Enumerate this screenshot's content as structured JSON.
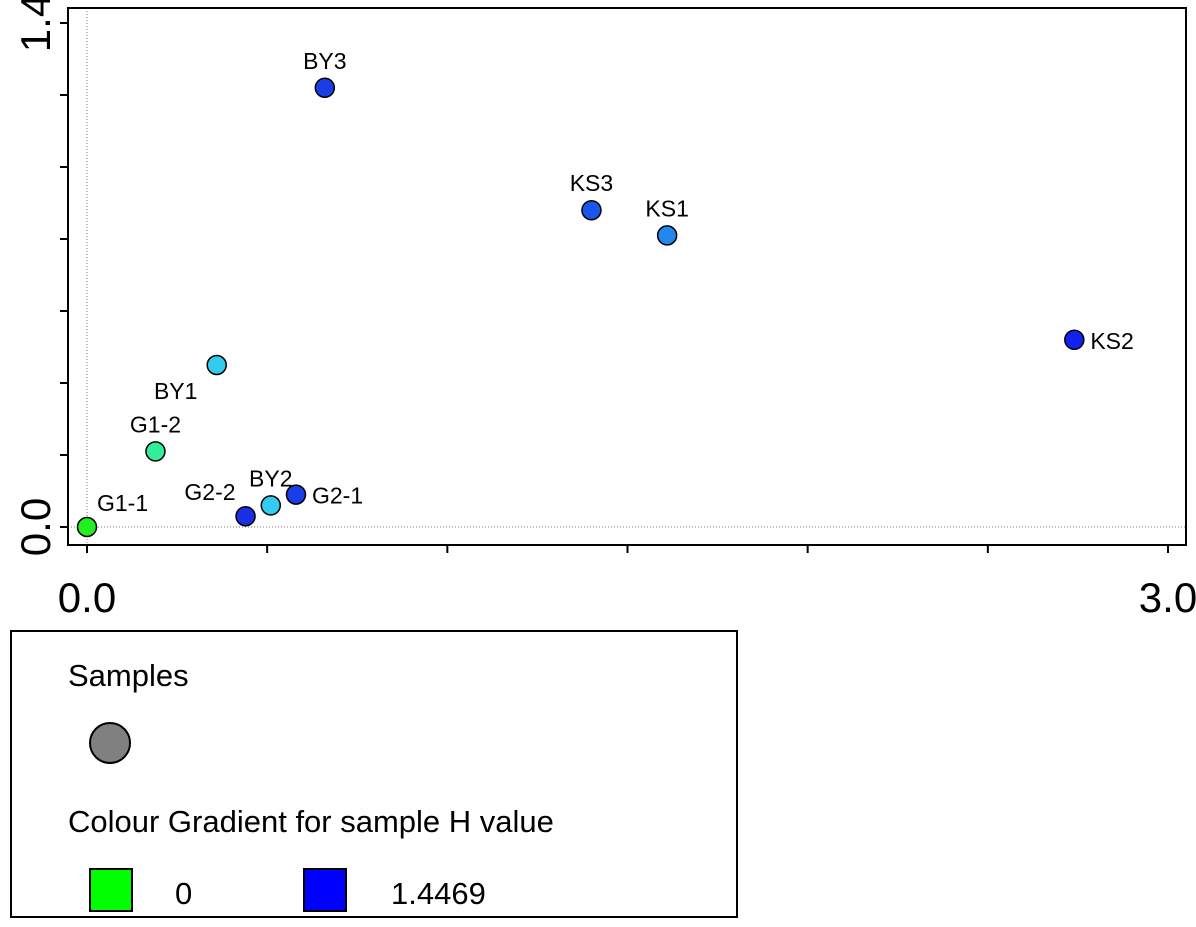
{
  "chart_data": {
    "type": "scatter",
    "title": "",
    "xlabel": "",
    "ylabel": "",
    "xlim": [
      -0.05,
      3.05
    ],
    "ylim": [
      -0.05,
      1.42
    ],
    "x_tick_labels": [
      {
        "value": 0.0,
        "label": "0.0"
      },
      {
        "value": 3.0,
        "label": "3.0"
      }
    ],
    "y_tick_labels": [
      {
        "value": 0.0,
        "label": "0.0"
      },
      {
        "value": 1.4,
        "label": "1.4"
      }
    ],
    "points": [
      {
        "label": "G1-1",
        "x": 0.0,
        "y": 0.0,
        "color": "#22ee22",
        "label_pos": "upper-right"
      },
      {
        "label": "G1-2",
        "x": 0.19,
        "y": 0.21,
        "color": "#33ee99",
        "label_pos": "above"
      },
      {
        "label": "BY1",
        "x": 0.36,
        "y": 0.45,
        "color": "#33ccee",
        "label_pos": "lower-left"
      },
      {
        "label": "G2-2",
        "x": 0.44,
        "y": 0.03,
        "color": "#1a2ee6",
        "label_pos": "upper-left"
      },
      {
        "label": "BY2",
        "x": 0.51,
        "y": 0.06,
        "color": "#33ccee",
        "label_pos": "above"
      },
      {
        "label": "G2-1",
        "x": 0.58,
        "y": 0.09,
        "color": "#1a3ee6",
        "label_pos": "right"
      },
      {
        "label": "BY3",
        "x": 0.66,
        "y": 1.22,
        "color": "#1a3ee6",
        "label_pos": "above"
      },
      {
        "label": "KS3",
        "x": 1.4,
        "y": 0.88,
        "color": "#1a55ee",
        "label_pos": "above"
      },
      {
        "label": "KS1",
        "x": 1.61,
        "y": 0.81,
        "color": "#2288ee",
        "label_pos": "above"
      },
      {
        "label": "KS2",
        "x": 2.74,
        "y": 0.52,
        "color": "#1122ee",
        "label_pos": "right"
      }
    ],
    "grid": false,
    "legend_position": "bottom-left"
  },
  "legend": {
    "samples_label": "Samples",
    "samples_marker_color": "#808080",
    "gradient_title": "Colour Gradient for sample H value",
    "gradient_min_label": "0",
    "gradient_max_label": "1.4469",
    "gradient_min_color": "#00ff00",
    "gradient_max_color": "#0000ff"
  }
}
